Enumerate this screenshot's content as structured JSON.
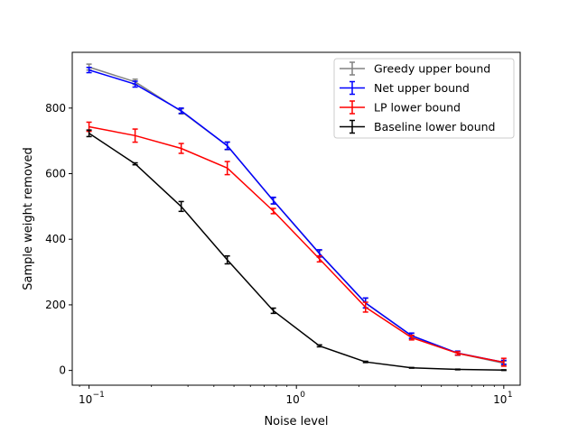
{
  "chart_data": {
    "type": "line",
    "xscale": "log",
    "xlabel": "Noise level",
    "ylabel": "Sample weight removed",
    "xlim": [
      0.083,
      12.0
    ],
    "ylim": [
      -45,
      970
    ],
    "xticks": [
      0.1,
      1,
      10
    ],
    "xtick_labels": [
      [
        "10",
        "−1"
      ],
      [
        "10",
        "0"
      ],
      [
        "10",
        "1"
      ]
    ],
    "yticks": [
      0,
      200,
      400,
      600,
      800
    ],
    "ytick_labels": [
      "0",
      "200",
      "400",
      "600",
      "800"
    ],
    "legend_position": "top-right",
    "x": [
      0.1,
      0.1668,
      0.2783,
      0.4642,
      0.7743,
      1.2915,
      2.1544,
      3.5938,
      5.9948,
      10.0
    ],
    "series": [
      {
        "name": "Greedy upper bound",
        "color": "#808080",
        "values": [
          925,
          880,
          790,
          685,
          517,
          356,
          205,
          105,
          52,
          22
        ],
        "errors": [
          9,
          8,
          8,
          12,
          10,
          10,
          15,
          8,
          6,
          6
        ]
      },
      {
        "name": "Net upper bound",
        "color": "#0000ff",
        "values": [
          916,
          873,
          792,
          685,
          518,
          357,
          206,
          106,
          53,
          25
        ],
        "errors": [
          8,
          9,
          8,
          11,
          10,
          11,
          15,
          8,
          6,
          6
        ]
      },
      {
        "name": "LP lower bound",
        "color": "#ff0000",
        "values": [
          743,
          716,
          677,
          617,
          486,
          340,
          193,
          100,
          52,
          25
        ],
        "errors": [
          14,
          20,
          15,
          20,
          8,
          9,
          15,
          7,
          5,
          12
        ]
      },
      {
        "name": "Baseline lower bound",
        "color": "#000000",
        "values": [
          723,
          630,
          500,
          337,
          182,
          75,
          26,
          8,
          3,
          1
        ],
        "errors": [
          10,
          3,
          15,
          12,
          8,
          3,
          2,
          1,
          1,
          1
        ]
      }
    ]
  }
}
